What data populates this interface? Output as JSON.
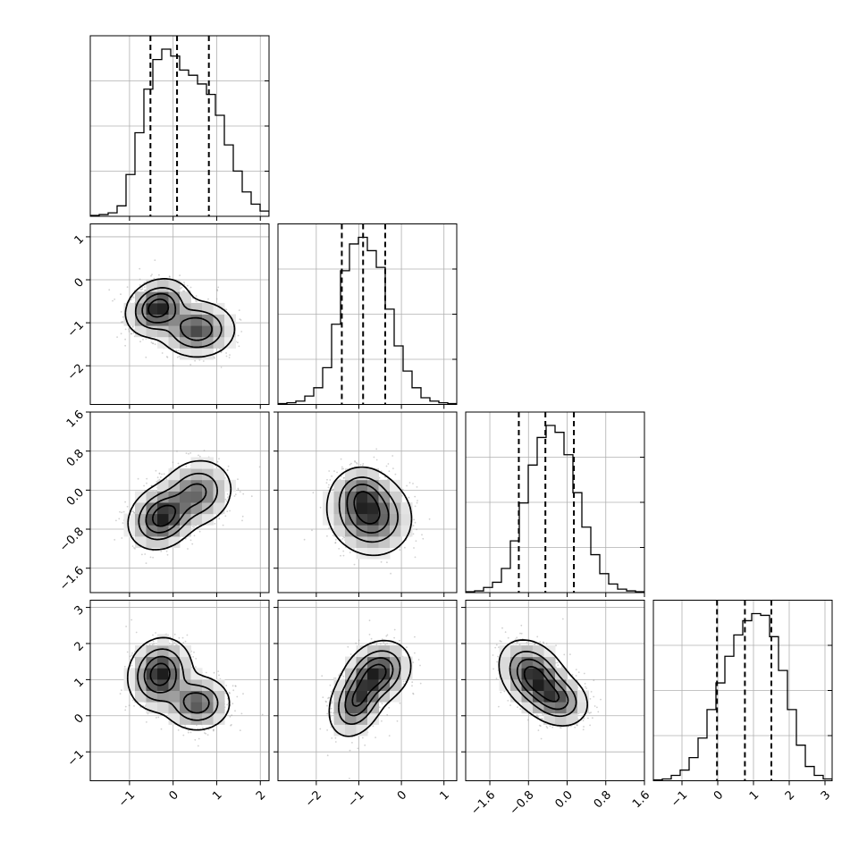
{
  "chart_data": {
    "type": "corner",
    "n_parameters": 4,
    "title": "",
    "axis_labels": [
      "",
      "",
      "",
      ""
    ],
    "parameters": [
      {
        "index": 0,
        "range": [
          -1.9,
          2.2
        ],
        "ticks": [
          -1,
          0,
          1,
          2
        ],
        "tick_labels": [
          "−1",
          "0",
          "1",
          "2"
        ],
        "quantiles": [
          -0.52,
          0.09,
          0.82
        ],
        "hist": {
          "start": -1.9,
          "bin_width": 0.205,
          "counts": [
            0.5,
            1,
            2,
            6,
            24,
            48,
            73,
            90,
            96,
            92,
            84,
            81,
            76,
            70,
            58,
            41,
            26,
            14,
            7,
            3
          ]
        }
      },
      {
        "index": 1,
        "range": [
          -2.9,
          1.3
        ],
        "ticks": [
          -2,
          -1,
          0,
          1
        ],
        "tick_labels": [
          "−2",
          "−1",
          "0",
          "1"
        ],
        "quantiles": [
          -1.4,
          -0.9,
          -0.38
        ],
        "hist": {
          "start": -2.9,
          "bin_width": 0.21,
          "counts": [
            0.5,
            1,
            2,
            5,
            10,
            22,
            48,
            80,
            96,
            100,
            92,
            82,
            57,
            35,
            20,
            10,
            4,
            2,
            1,
            0.5
          ]
        }
      },
      {
        "index": 2,
        "range": [
          -2.1,
          1.6
        ],
        "ticks": [
          -1.6,
          -0.8,
          0.0,
          0.8,
          1.6
        ],
        "tick_labels": [
          "−1.6",
          "−0.8",
          "0.0",
          "0.8",
          "1.6"
        ],
        "quantiles": [
          -1.0,
          -0.45,
          0.14
        ],
        "hist": {
          "start": -2.1,
          "bin_width": 0.185,
          "counts": [
            0.5,
            1,
            3,
            6,
            14,
            30,
            52,
            74,
            90,
            97,
            93,
            80,
            58,
            38,
            22,
            11,
            5,
            2,
            1,
            0.5
          ]
        }
      },
      {
        "index": 3,
        "range": [
          -1.8,
          3.2
        ],
        "ticks": [
          -1,
          0,
          1,
          2,
          3
        ],
        "tick_labels": [
          "−1",
          "0",
          "1",
          "2",
          "3"
        ],
        "quantiles": [
          -0.02,
          0.76,
          1.5
        ],
        "hist": {
          "start": -1.8,
          "bin_width": 0.25,
          "counts": [
            0.5,
            1,
            3,
            6,
            13,
            24,
            40,
            55,
            70,
            82,
            90,
            94,
            93,
            81,
            62,
            40,
            20,
            8,
            3,
            1
          ]
        }
      }
    ],
    "panels_2d": [
      {
        "row": 1,
        "col": 0,
        "modes": [
          {
            "mx": -0.35,
            "my": -0.65,
            "sx": 0.33,
            "sy": 0.3,
            "rho": 0.2,
            "w": 1.0
          },
          {
            "mx": 0.55,
            "my": -1.15,
            "sx": 0.4,
            "sy": 0.3,
            "rho": 0.0,
            "w": 0.8
          }
        ]
      },
      {
        "row": 2,
        "col": 0,
        "modes": [
          {
            "mx": -0.25,
            "my": -0.55,
            "sx": 0.35,
            "sy": 0.3,
            "rho": 0.2,
            "w": 1.0
          },
          {
            "mx": 0.55,
            "my": -0.05,
            "sx": 0.38,
            "sy": 0.32,
            "rho": 0.1,
            "w": 0.65
          }
        ]
      },
      {
        "row": 2,
        "col": 1,
        "modes": [
          {
            "mx": -0.75,
            "my": -0.5,
            "sx": 0.45,
            "sy": 0.38,
            "rho": -0.1,
            "w": 1.0
          },
          {
            "mx": -0.95,
            "my": -0.05,
            "sx": 0.3,
            "sy": 0.25,
            "rho": 0.0,
            "w": 0.45
          }
        ]
      },
      {
        "row": 3,
        "col": 0,
        "modes": [
          {
            "mx": -0.3,
            "my": 1.15,
            "sx": 0.33,
            "sy": 0.45,
            "rho": 0.1,
            "w": 1.0
          },
          {
            "mx": 0.55,
            "my": 0.35,
            "sx": 0.35,
            "sy": 0.35,
            "rho": 0.0,
            "w": 0.75
          }
        ]
      },
      {
        "row": 3,
        "col": 1,
        "modes": [
          {
            "mx": -1.05,
            "my": 0.4,
            "sx": 0.3,
            "sy": 0.45,
            "rho": 0.3,
            "w": 0.9
          },
          {
            "mx": -0.55,
            "my": 1.2,
            "sx": 0.35,
            "sy": 0.4,
            "rho": 0.2,
            "w": 1.0
          }
        ]
      },
      {
        "row": 3,
        "col": 2,
        "modes": [
          {
            "mx": -0.7,
            "my": 1.1,
            "sx": 0.32,
            "sy": 0.45,
            "rho": -0.3,
            "w": 1.0
          },
          {
            "mx": -0.2,
            "my": 0.45,
            "sx": 0.3,
            "sy": 0.35,
            "rho": -0.2,
            "w": 0.7
          }
        ]
      }
    ],
    "grid": true,
    "legend": "none",
    "colors": {
      "density": "#000000",
      "scatter": "#9a9a9a",
      "grid": "#b0b0b0"
    }
  }
}
